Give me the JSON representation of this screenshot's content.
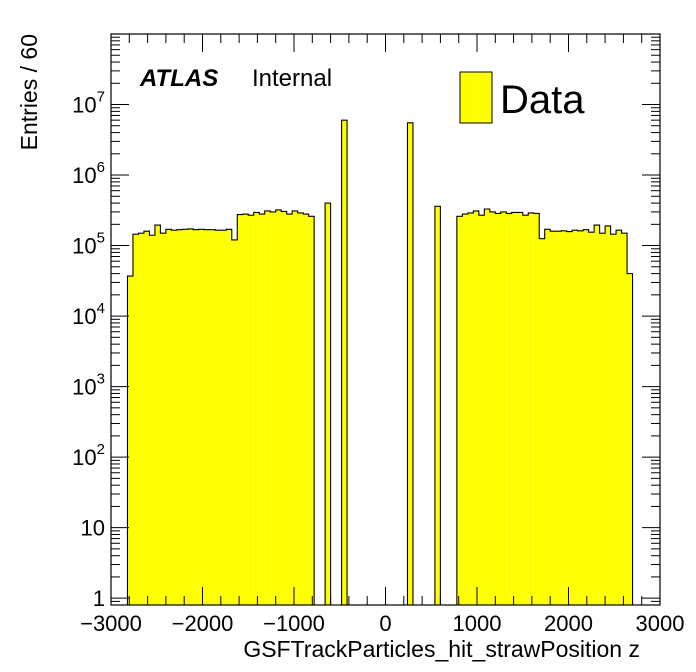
{
  "chart_data": {
    "type": "bar",
    "histogram": true,
    "y_scale": "log",
    "xlim": [
      -3000,
      3000
    ],
    "ylim": [
      0.8,
      100000000
    ],
    "xlabel": "GSFTrackParticles_hit_strawPosition z",
    "ylabel": "Entries / 60",
    "x_tick_labels": [
      "−3000",
      "−2000",
      "−1000",
      "0",
      "1000",
      "2000",
      "3000"
    ],
    "x_tick_values": [
      -3000,
      -2000,
      -1000,
      0,
      1000,
      2000,
      3000
    ],
    "y_tick_labels": [
      {
        "base": "1",
        "exp": ""
      },
      {
        "base": "10",
        "exp": ""
      },
      {
        "base": "10",
        "exp": "2"
      },
      {
        "base": "10",
        "exp": "3"
      },
      {
        "base": "10",
        "exp": "4"
      },
      {
        "base": "10",
        "exp": "5"
      },
      {
        "base": "10",
        "exp": "6"
      },
      {
        "base": "10",
        "exp": "7"
      }
    ],
    "y_tick_values": [
      1,
      10,
      100,
      1000,
      10000,
      100000,
      1000000,
      10000000
    ],
    "bin_width": 60,
    "fill_color": "#ffff00",
    "line_color": "#000000",
    "bins": [
      [
        -2820,
        37000
      ],
      [
        -2760,
        145000
      ],
      [
        -2700,
        150000
      ],
      [
        -2640,
        160000
      ],
      [
        -2580,
        140000
      ],
      [
        -2520,
        195000
      ],
      [
        -2460,
        150000
      ],
      [
        -2400,
        170000
      ],
      [
        -2340,
        165000
      ],
      [
        -2280,
        168000
      ],
      [
        -2220,
        170000
      ],
      [
        -2160,
        172000
      ],
      [
        -2100,
        168000
      ],
      [
        -2040,
        170000
      ],
      [
        -1980,
        168000
      ],
      [
        -1920,
        168000
      ],
      [
        -1860,
        165000
      ],
      [
        -1800,
        165000
      ],
      [
        -1740,
        170000
      ],
      [
        -1680,
        120000
      ],
      [
        -1620,
        275000
      ],
      [
        -1560,
        280000
      ],
      [
        -1500,
        270000
      ],
      [
        -1440,
        295000
      ],
      [
        -1380,
        280000
      ],
      [
        -1320,
        310000
      ],
      [
        -1260,
        300000
      ],
      [
        -1200,
        320000
      ],
      [
        -1140,
        305000
      ],
      [
        -1080,
        280000
      ],
      [
        -1020,
        310000
      ],
      [
        -960,
        290000
      ],
      [
        -900,
        280000
      ],
      [
        -840,
        260000
      ],
      [
        -660,
        400000
      ],
      [
        -480,
        6000000
      ],
      [
        240,
        5500000
      ],
      [
        540,
        360000
      ],
      [
        780,
        260000
      ],
      [
        840,
        280000
      ],
      [
        900,
        290000
      ],
      [
        960,
        310000
      ],
      [
        1020,
        270000
      ],
      [
        1080,
        330000
      ],
      [
        1140,
        300000
      ],
      [
        1200,
        285000
      ],
      [
        1260,
        300000
      ],
      [
        1320,
        285000
      ],
      [
        1380,
        295000
      ],
      [
        1440,
        295000
      ],
      [
        1500,
        270000
      ],
      [
        1560,
        290000
      ],
      [
        1620,
        285000
      ],
      [
        1680,
        125000
      ],
      [
        1740,
        170000
      ],
      [
        1800,
        160000
      ],
      [
        1860,
        160000
      ],
      [
        1920,
        162000
      ],
      [
        1980,
        158000
      ],
      [
        2040,
        165000
      ],
      [
        2100,
        162000
      ],
      [
        2160,
        168000
      ],
      [
        2220,
        155000
      ],
      [
        2280,
        195000
      ],
      [
        2340,
        150000
      ],
      [
        2400,
        190000
      ],
      [
        2460,
        145000
      ],
      [
        2520,
        165000
      ],
      [
        2580,
        150000
      ],
      [
        2640,
        40000
      ]
    ]
  },
  "annotations": {
    "atlas": "ATLAS",
    "internal": "Internal"
  },
  "legend": {
    "label": "Data",
    "placement": "top-right"
  }
}
